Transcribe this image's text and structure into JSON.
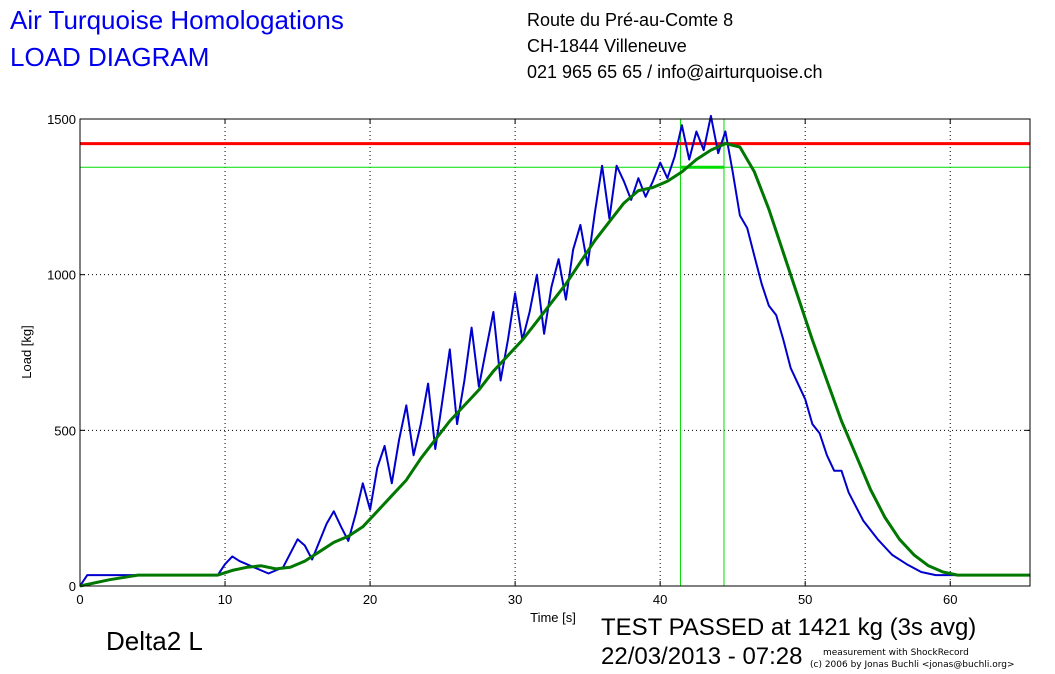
{
  "header": {
    "title_line1": "Air Turquoise Homologations",
    "title_line2": "LOAD DIAGRAM",
    "address_line1": "Route du Pré-au-Comte 8",
    "address_line2": "CH-1844 Villeneuve",
    "address_line3": "021 965 65 65 / info@airturquoise.ch"
  },
  "footer": {
    "model": "Delta2 L",
    "result": "TEST PASSED at 1421 kg (3s avg)",
    "datetime": "22/03/2013 - 07:28",
    "credit_line1": "measurement with ShockRecord",
    "credit_line2": "(c) 2006 by Jonas Buchli <jonas@buchli.org>"
  },
  "chart_data": {
    "type": "line",
    "xlabel": "Time [s]",
    "ylabel": "Load [kg]",
    "xlim": [
      0,
      65.5
    ],
    "ylim": [
      0,
      1500
    ],
    "xticks": [
      0,
      10,
      20,
      30,
      40,
      50,
      60
    ],
    "yticks": [
      0,
      500,
      1000,
      1500
    ],
    "grid": true,
    "colors": {
      "raw": "#0000cc",
      "avg": "#007700",
      "limit": "#ff0000",
      "window": "#00dd00"
    },
    "reference_lines": {
      "limit_load": 1421,
      "window_level": 1345,
      "window_x": [
        41.4,
        44.4
      ],
      "window_top": 1500
    },
    "series": [
      {
        "key": "raw",
        "x": [
          0,
          0.5,
          2,
          4,
          6,
          8,
          9.5,
          10,
          10.5,
          11,
          12,
          13,
          14,
          15,
          15.5,
          16,
          17,
          17.5,
          18,
          18.5,
          19,
          19.5,
          20,
          20.5,
          21,
          21.5,
          22,
          22.5,
          23,
          23.5,
          24,
          24.5,
          25,
          25.5,
          26,
          26.5,
          27,
          27.5,
          28,
          28.5,
          29,
          29.5,
          30,
          30.5,
          31,
          31.5,
          32,
          32.5,
          33,
          33.5,
          34,
          34.5,
          35,
          35.5,
          36,
          36.5,
          37,
          37.5,
          38,
          38.5,
          39,
          39.5,
          40,
          40.5,
          41,
          41.5,
          42,
          42.5,
          43,
          43.5,
          44,
          44.5,
          45,
          45.5,
          46,
          46.5,
          47,
          47.5,
          48,
          48.5,
          49,
          49.5,
          50,
          50.5,
          51,
          51.5,
          52,
          52.5,
          53,
          54,
          55,
          56,
          57,
          58,
          59,
          60,
          62,
          65.5
        ],
        "y": [
          0,
          35,
          35,
          35,
          35,
          35,
          35,
          70,
          95,
          80,
          60,
          40,
          60,
          150,
          130,
          85,
          200,
          240,
          190,
          145,
          230,
          330,
          245,
          380,
          450,
          330,
          470,
          580,
          420,
          520,
          650,
          440,
          600,
          760,
          520,
          660,
          830,
          640,
          760,
          880,
          660,
          790,
          940,
          790,
          880,
          1000,
          810,
          960,
          1050,
          920,
          1080,
          1160,
          1030,
          1200,
          1350,
          1180,
          1350,
          1300,
          1240,
          1310,
          1250,
          1300,
          1360,
          1310,
          1380,
          1480,
          1370,
          1460,
          1400,
          1510,
          1390,
          1460,
          1330,
          1190,
          1150,
          1060,
          970,
          900,
          870,
          790,
          700,
          650,
          600,
          520,
          490,
          420,
          370,
          370,
          300,
          210,
          150,
          100,
          70,
          45,
          35,
          35,
          35,
          35
        ]
      },
      {
        "key": "avg",
        "x": [
          0,
          2,
          4,
          6,
          8,
          9.5,
          10.5,
          11.5,
          12.5,
          13.5,
          14.5,
          15.5,
          16.5,
          17.5,
          18.5,
          19.5,
          20.5,
          21.5,
          22.5,
          23.5,
          24.5,
          25.5,
          26.5,
          27.5,
          28.5,
          29.5,
          30.5,
          31.5,
          32.5,
          33.5,
          34.5,
          35.5,
          36.5,
          37.5,
          38.5,
          39.5,
          40.5,
          41.5,
          42.5,
          43.5,
          44.5,
          45.5,
          46.5,
          47.5,
          48.5,
          49.5,
          50.5,
          51.5,
          52.5,
          53.5,
          54.5,
          55.5,
          56.5,
          57.5,
          58.5,
          59.5,
          60.5,
          62,
          65.5
        ],
        "y": [
          0,
          20,
          35,
          35,
          35,
          35,
          50,
          60,
          65,
          55,
          60,
          80,
          110,
          140,
          160,
          190,
          240,
          290,
          340,
          410,
          470,
          530,
          580,
          630,
          690,
          740,
          790,
          850,
          910,
          970,
          1040,
          1110,
          1170,
          1230,
          1270,
          1280,
          1300,
          1330,
          1370,
          1400,
          1421,
          1410,
          1330,
          1210,
          1070,
          930,
          790,
          660,
          530,
          420,
          310,
          220,
          150,
          100,
          65,
          45,
          35,
          35,
          35
        ]
      }
    ]
  }
}
